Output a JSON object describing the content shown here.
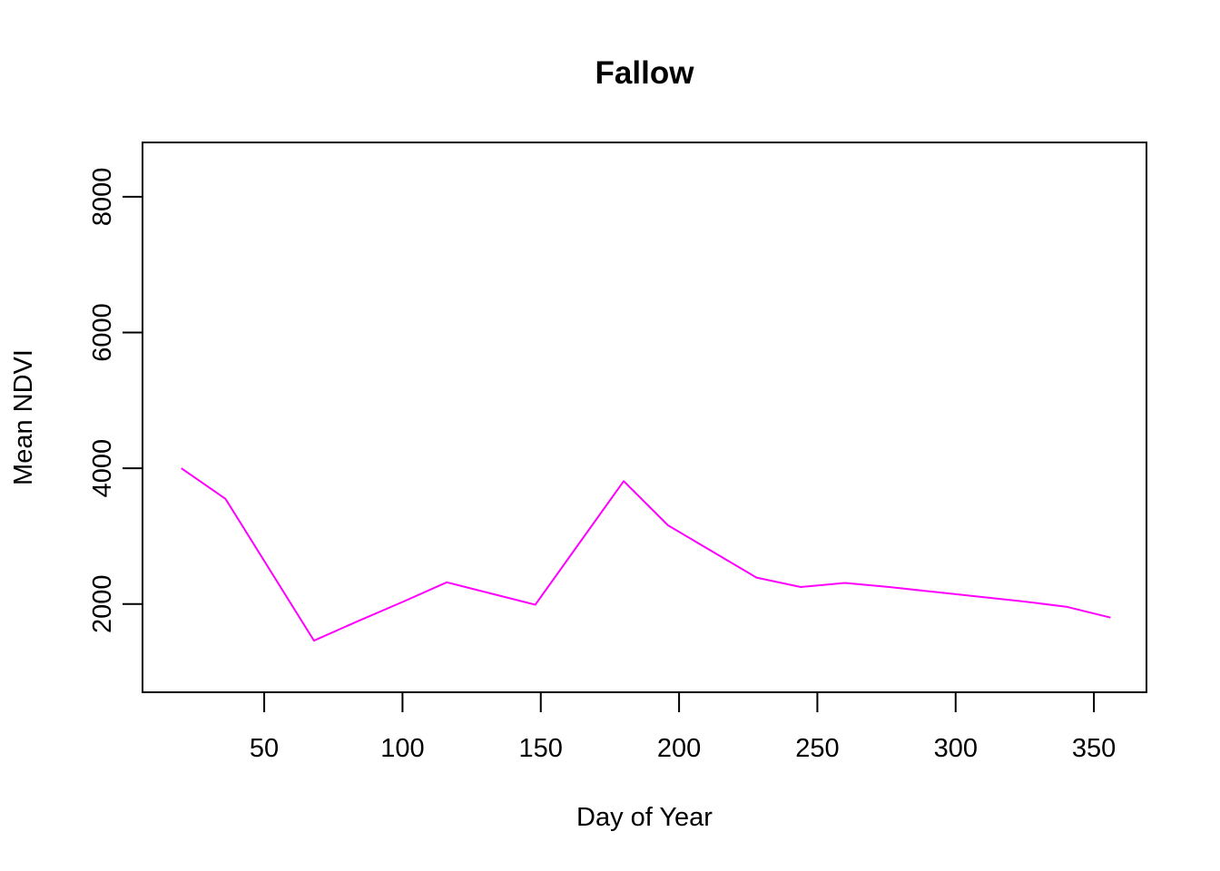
{
  "chart_data": {
    "type": "line",
    "title": "Fallow",
    "xlabel": "Day of Year",
    "ylabel": "Mean NDVI",
    "xlim": [
      6,
      369
    ],
    "ylim": [
      700,
      8800
    ],
    "x_ticks": [
      50,
      100,
      150,
      200,
      250,
      300,
      350
    ],
    "y_ticks": [
      2000,
      4000,
      6000,
      8000
    ],
    "grid": false,
    "legend": "none",
    "series": [
      {
        "color": "#ff00ff",
        "x": [
          20,
          36,
          68,
          84,
          100,
          116,
          148,
          180,
          196,
          228,
          244,
          260,
          276,
          292,
          308,
          324,
          340,
          356
        ],
        "y": [
          4000,
          3550,
          1460,
          1750,
          2030,
          2320,
          1990,
          3810,
          3160,
          2390,
          2250,
          2310,
          2250,
          2180,
          2110,
          2040,
          1960,
          1800
        ]
      }
    ]
  }
}
